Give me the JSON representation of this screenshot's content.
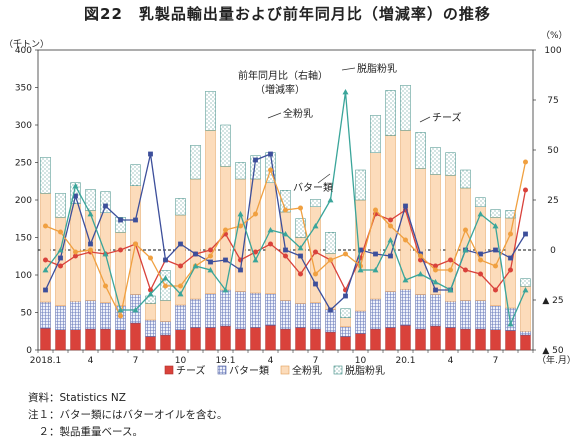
{
  "title": "図22　乳製品輸出量および前年同月比（増減率）の推移",
  "notes": {
    "source": "資料：Statistics NZ",
    "note1": "注１：バター類にはバターオイルを含む。",
    "note2": "　２：製品重量ベース。"
  },
  "chart_data": {
    "type": "bar",
    "left_unit": "（千トン）",
    "right_unit": "（%）",
    "x_unit": "（年.月）",
    "x_tick_labels": [
      {
        "index": 0,
        "label": "2018.1"
      },
      {
        "index": 3,
        "label": "4"
      },
      {
        "index": 6,
        "label": "7"
      },
      {
        "index": 9,
        "label": "10"
      },
      {
        "index": 12,
        "label": "19.1"
      },
      {
        "index": 15,
        "label": "4"
      },
      {
        "index": 18,
        "label": "7"
      },
      {
        "index": 21,
        "label": "10"
      },
      {
        "index": 24,
        "label": "20.1"
      },
      {
        "index": 27,
        "label": "4"
      },
      {
        "index": 30,
        "label": "7"
      }
    ],
    "left_axis": {
      "ylim": [
        0,
        400
      ],
      "ticks": [
        0,
        50,
        100,
        150,
        200,
        250,
        300,
        350,
        400
      ]
    },
    "right_axis": {
      "ylim": [
        -50,
        100
      ],
      "ticks": [
        100,
        75,
        50,
        25,
        0,
        -25,
        -50
      ],
      "tick_labels": [
        "100",
        "75",
        "50",
        "25",
        "0",
        "▲ 25",
        "▲ 50"
      ]
    },
    "bar_series": [
      {
        "name": "チーズ",
        "color": "#d9423b",
        "values": [
          29,
          27,
          27,
          28,
          28,
          27,
          36,
          18,
          20,
          27,
          30,
          30,
          32,
          28,
          30,
          33,
          28,
          30,
          28,
          24,
          18,
          22,
          28,
          30,
          33,
          28,
          32,
          30,
          28,
          28,
          27,
          26,
          20
        ]
      },
      {
        "name": "バター類",
        "color": "#e9ecf7",
        "values": [
          35,
          32,
          38,
          38,
          35,
          32,
          38,
          22,
          18,
          33,
          38,
          45,
          48,
          50,
          46,
          42,
          38,
          32,
          35,
          30,
          13,
          30,
          40,
          48,
          48,
          46,
          42,
          35,
          38,
          38,
          32,
          30,
          5
        ]
      },
      {
        "name": "全粉乳",
        "color": "#fcdcbb",
        "values": [
          145,
          118,
          130,
          120,
          120,
          98,
          145,
          22,
          28,
          120,
          160,
          218,
          165,
          150,
          152,
          148,
          118,
          88,
          128,
          75,
          12,
          148,
          195,
          208,
          212,
          168,
          160,
          168,
          150,
          125,
          118,
          120,
          60
        ]
      },
      {
        "name": "脱脂粉乳",
        "color": "#ffffff",
        "values": [
          48,
          32,
          28,
          28,
          28,
          20,
          28,
          10,
          40,
          22,
          45,
          52,
          55,
          22,
          31,
          40,
          29,
          25,
          10,
          28,
          12,
          40,
          50,
          60,
          60,
          48,
          36,
          30,
          24,
          12,
          10,
          10,
          10
        ]
      }
    ],
    "line_series": [
      {
        "name": "チーズ",
        "color": "#d9423b",
        "marker": "circle",
        "values": [
          -5,
          -8,
          -3,
          -1,
          -2,
          0,
          3,
          -20,
          -5,
          -8,
          -2,
          0,
          8,
          -5,
          -1,
          3,
          -3,
          -12,
          -1,
          -5,
          -20,
          -4,
          18,
          15,
          20,
          -5,
          -8,
          -5,
          -10,
          -12,
          -20,
          -10,
          30
        ]
      },
      {
        "name": "バター類",
        "color": "#3d4f9b",
        "marker": "square",
        "values": [
          -20,
          -4,
          27,
          3,
          22,
          15,
          15,
          48,
          -5,
          3,
          -2,
          -6,
          -5,
          -10,
          45,
          48,
          0,
          -3,
          -17,
          -30,
          -23,
          0,
          -2,
          -3,
          22,
          -2,
          -20,
          -20,
          0,
          -2,
          0,
          -4,
          8
        ]
      },
      {
        "name": "全粉乳",
        "color": "#f0a040",
        "marker": "circle",
        "values": [
          12,
          9,
          -1,
          0,
          -18,
          -33,
          3,
          -4,
          -18,
          -18,
          -8,
          -3,
          10,
          12,
          18,
          40,
          20,
          21,
          -12,
          -5,
          -2,
          -8,
          20,
          12,
          5,
          -3,
          -10,
          -10,
          10,
          -5,
          -8,
          8,
          44
        ]
      },
      {
        "name": "脱脂粉乳",
        "color": "#3aa59a",
        "marker": "triangle",
        "values": [
          -10,
          0,
          32,
          18,
          -2,
          -30,
          -30,
          -22,
          -14,
          -22,
          -8,
          -10,
          -20,
          18,
          -5,
          10,
          8,
          1,
          12,
          25,
          79,
          -10,
          -10,
          5,
          -15,
          -12,
          -16,
          -20,
          0,
          18,
          12,
          -37,
          -20
        ]
      }
    ],
    "annotations": {
      "skim": "脱脂粉乳",
      "yoy_right": "前年同月比（右軸）",
      "yoy_ratio": "（増減率）",
      "wmp": "全粉乳",
      "cheese": "チーズ",
      "butter": "バター類"
    },
    "legend": {
      "position": "bottom"
    }
  }
}
